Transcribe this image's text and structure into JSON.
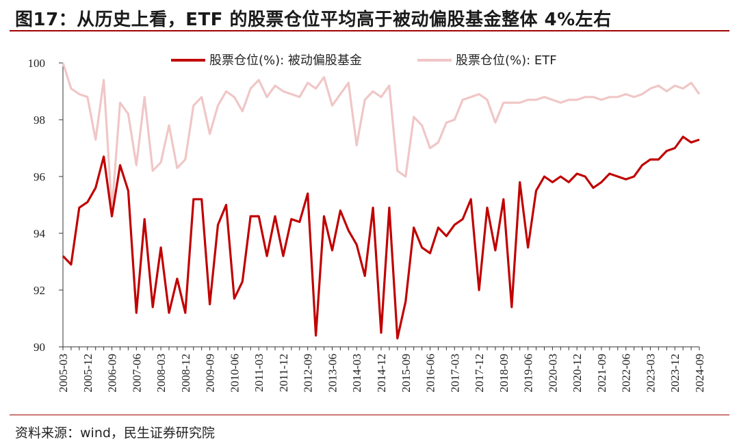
{
  "title": "图17：从历史上看，ETF 的股票仓位平均高于被动偏股基金整体 4%左右",
  "source": "资料来源：wind，民生证券研究院",
  "colors": {
    "passive": "#c00000",
    "etf": "#f0c6c6",
    "rule": "#a30000"
  },
  "chart_data": {
    "type": "line",
    "title": "",
    "xlabel": "",
    "ylabel": "",
    "ylim": [
      90,
      100
    ],
    "yticks": [
      90,
      92,
      94,
      96,
      98,
      100
    ],
    "legend_position": "top-center",
    "grid": false,
    "x": [
      "2005-03",
      "2005-06",
      "2005-09",
      "2005-12",
      "2006-03",
      "2006-06",
      "2006-09",
      "2006-12",
      "2007-03",
      "2007-06",
      "2007-09",
      "2007-12",
      "2008-03",
      "2008-06",
      "2008-09",
      "2008-12",
      "2009-03",
      "2009-06",
      "2009-09",
      "2009-12",
      "2010-03",
      "2010-06",
      "2010-09",
      "2010-12",
      "2011-03",
      "2011-06",
      "2011-09",
      "2011-12",
      "2012-03",
      "2012-06",
      "2012-09",
      "2012-12",
      "2013-03",
      "2013-06",
      "2013-09",
      "2013-12",
      "2014-03",
      "2014-06",
      "2014-09",
      "2014-12",
      "2015-03",
      "2015-06",
      "2015-09",
      "2015-12",
      "2016-03",
      "2016-06",
      "2016-09",
      "2016-12",
      "2017-03",
      "2017-06",
      "2017-09",
      "2017-12",
      "2018-03",
      "2018-06",
      "2018-09",
      "2018-12",
      "2019-03",
      "2019-06",
      "2019-09",
      "2019-12",
      "2020-03",
      "2020-06",
      "2020-09",
      "2020-12",
      "2021-03",
      "2021-06",
      "2021-09",
      "2021-12",
      "2022-03",
      "2022-06",
      "2022-09",
      "2022-12",
      "2023-03",
      "2023-06",
      "2023-09",
      "2023-12",
      "2024-03",
      "2024-06",
      "2024-09"
    ],
    "tick_labels": [
      "2005-03",
      "2005-12",
      "2006-09",
      "2007-06",
      "2008-03",
      "2008-12",
      "2009-09",
      "2010-06",
      "2011-03",
      "2011-12",
      "2012-09",
      "2013-06",
      "2014-03",
      "2014-12",
      "2015-09",
      "2016-06",
      "2017-03",
      "2017-12",
      "2018-09",
      "2019-06",
      "2020-03",
      "2020-12",
      "2021-09",
      "2022-06",
      "2023-03",
      "2023-12",
      "2024-09"
    ],
    "series": [
      {
        "name": "股票仓位(%): 被动偏股基金",
        "values": [
          93.2,
          92.9,
          94.9,
          95.1,
          95.6,
          96.7,
          94.6,
          96.4,
          95.5,
          91.2,
          94.5,
          91.4,
          93.5,
          91.2,
          92.4,
          91.2,
          95.2,
          95.2,
          91.5,
          94.3,
          95.0,
          91.7,
          92.3,
          94.6,
          94.6,
          93.2,
          94.6,
          93.2,
          94.5,
          94.4,
          95.4,
          90.4,
          94.6,
          93.4,
          94.8,
          94.1,
          93.6,
          92.5,
          94.9,
          90.5,
          94.9,
          90.3,
          91.6,
          94.2,
          93.5,
          93.3,
          94.2,
          93.9,
          94.3,
          94.5,
          95.2,
          92.0,
          94.9,
          93.4,
          95.2,
          91.4,
          95.8,
          93.5,
          95.5,
          96.0,
          95.8,
          96.0,
          95.8,
          96.1,
          96.0,
          95.6,
          95.8,
          96.1,
          96.0,
          95.9,
          96.0,
          96.4,
          96.6,
          96.6,
          96.9,
          97.0,
          97.4,
          97.2,
          97.3
        ]
      },
      {
        "name": "股票仓位(%): ETF",
        "values": [
          100.0,
          99.1,
          98.9,
          98.8,
          97.3,
          99.4,
          94.8,
          98.6,
          98.2,
          96.4,
          98.8,
          96.2,
          96.5,
          97.8,
          96.3,
          96.6,
          98.5,
          98.8,
          97.5,
          98.5,
          99.0,
          98.8,
          98.3,
          99.1,
          99.4,
          98.8,
          99.2,
          99.0,
          98.9,
          98.8,
          99.3,
          99.1,
          99.5,
          98.5,
          98.9,
          99.3,
          97.1,
          98.7,
          99.0,
          98.8,
          99.2,
          96.2,
          96.0,
          98.1,
          97.8,
          97.0,
          97.2,
          97.9,
          98.0,
          98.7,
          98.8,
          98.9,
          98.7,
          97.9,
          98.6,
          98.6,
          98.6,
          98.7,
          98.7,
          98.8,
          98.7,
          98.6,
          98.7,
          98.7,
          98.8,
          98.8,
          98.7,
          98.8,
          98.8,
          98.9,
          98.8,
          98.9,
          99.1,
          99.2,
          99.0,
          99.2,
          99.1,
          99.3,
          98.9
        ]
      }
    ]
  }
}
